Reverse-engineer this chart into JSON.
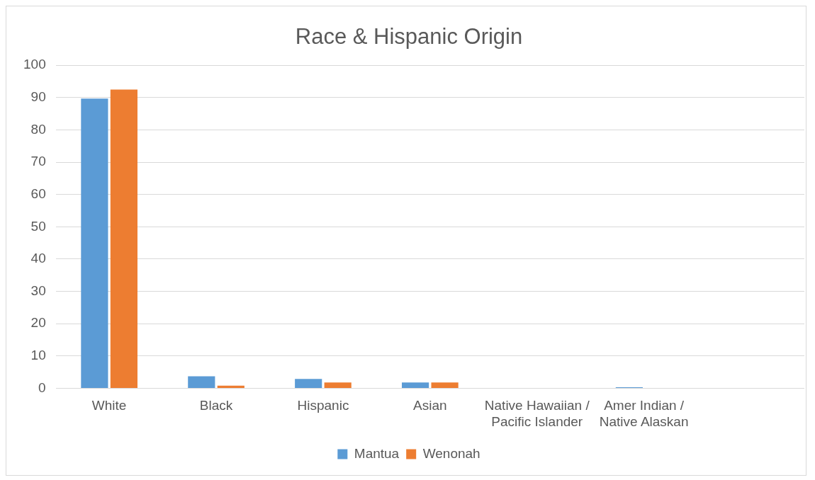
{
  "chart_data": {
    "type": "bar",
    "title": "Race & Hispanic Origin",
    "categories": [
      "White",
      "Black",
      "Hispanic",
      "Asian",
      "Native Hawaiian / Pacific Islander",
      "Amer Indian / Native Alaskan",
      null
    ],
    "series": [
      {
        "name": "Mantua",
        "color": "#5b9bd5",
        "values": [
          89.7,
          3.7,
          2.9,
          1.8,
          0,
          0.3,
          null
        ]
      },
      {
        "name": "Wenonah",
        "color": "#ed7d31",
        "values": [
          92.5,
          0.8,
          1.8,
          1.8,
          0,
          0,
          null
        ]
      }
    ],
    "ylim": [
      0,
      100
    ],
    "yticks": [
      0,
      10,
      20,
      30,
      40,
      50,
      60,
      70,
      80,
      90,
      100
    ],
    "grid": "y",
    "legend": "bottom"
  }
}
